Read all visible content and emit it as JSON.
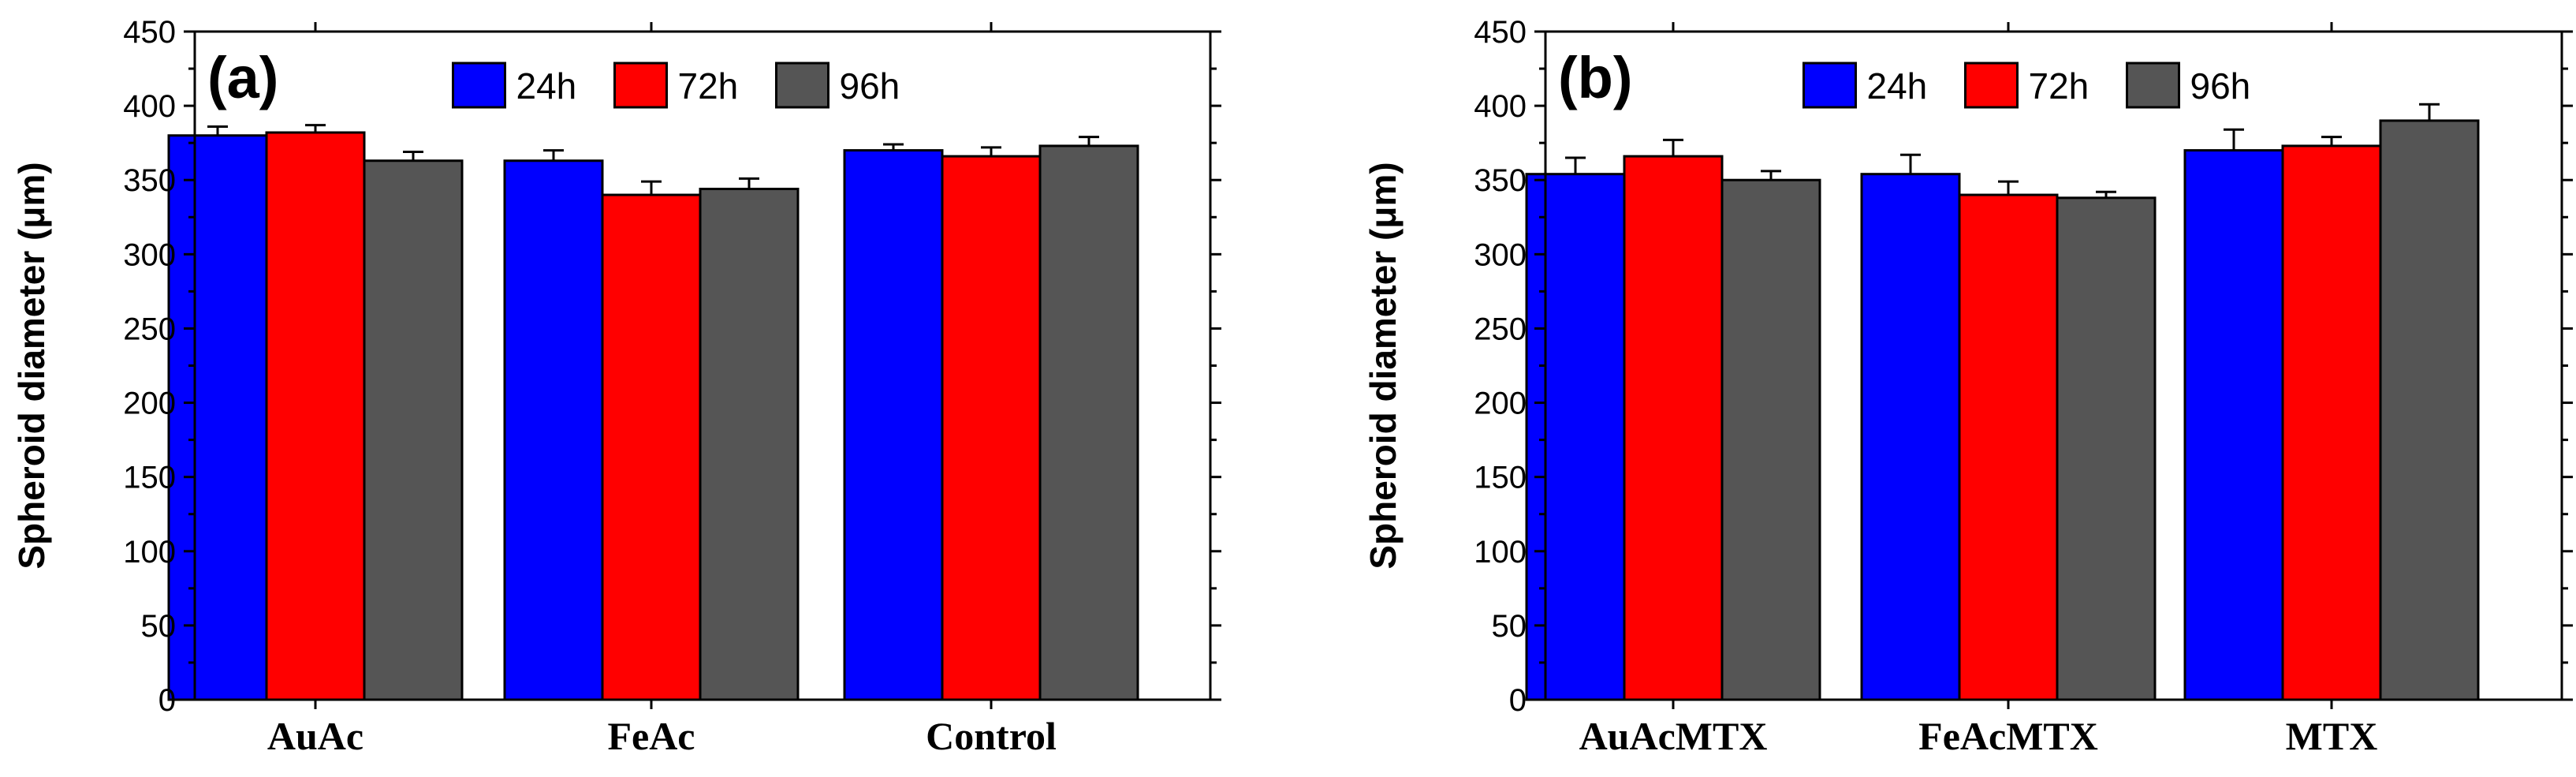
{
  "chart_data": [
    {
      "type": "bar",
      "panel_label": "(a)",
      "ylabel": "Spheroid diameter (μm)",
      "ylim": [
        0,
        450
      ],
      "yticks": [
        0,
        50,
        100,
        150,
        200,
        250,
        300,
        350,
        400,
        450
      ],
      "categories": [
        "AuAc",
        "FeAc",
        "Control"
      ],
      "legend_position": "top-center",
      "series": [
        {
          "name": "24h",
          "color": "#0000ff",
          "values": [
            380,
            363,
            370
          ],
          "errors": [
            6,
            7,
            4
          ]
        },
        {
          "name": "72h",
          "color": "#ff0000",
          "values": [
            382,
            340,
            366
          ],
          "errors": [
            5,
            9,
            6
          ]
        },
        {
          "name": "96h",
          "color": "#555555",
          "values": [
            363,
            344,
            373
          ],
          "errors": [
            6,
            7,
            6
          ]
        }
      ]
    },
    {
      "type": "bar",
      "panel_label": "(b)",
      "ylabel": "Spheroid diameter (μm)",
      "ylim": [
        0,
        450
      ],
      "yticks": [
        0,
        50,
        100,
        150,
        200,
        250,
        300,
        350,
        400,
        450
      ],
      "categories": [
        "AuAcMTX",
        "FeAcMTX",
        "MTX"
      ],
      "legend_position": "top-center",
      "series": [
        {
          "name": "24h",
          "color": "#0000ff",
          "values": [
            354,
            354,
            370
          ],
          "errors": [
            11,
            13,
            14
          ]
        },
        {
          "name": "72h",
          "color": "#ff0000",
          "values": [
            366,
            340,
            373
          ],
          "errors": [
            11,
            9,
            6
          ]
        },
        {
          "name": "96h",
          "color": "#555555",
          "values": [
            350,
            338,
            390
          ],
          "errors": [
            6,
            4,
            11
          ]
        }
      ]
    }
  ]
}
